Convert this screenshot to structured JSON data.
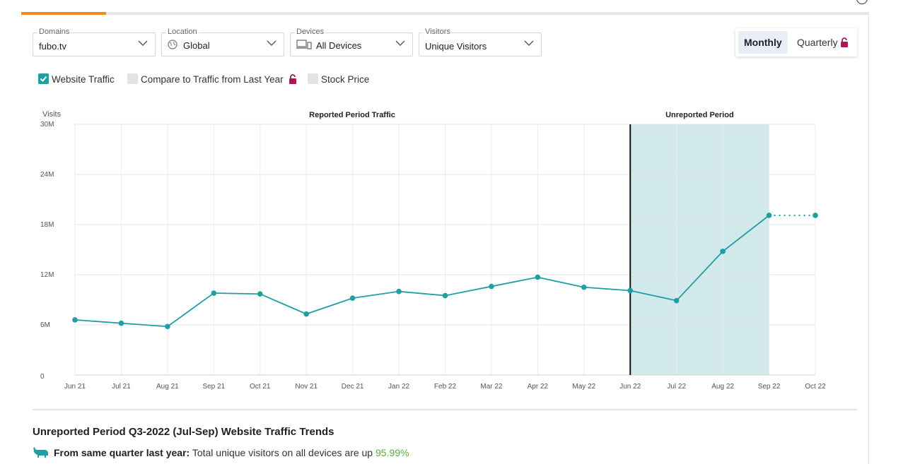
{
  "filters": {
    "domains": {
      "label": "Domains",
      "value": "fubo.tv"
    },
    "location": {
      "label": "Location",
      "value": "Global"
    },
    "devices": {
      "label": "Devices",
      "value": "All Devices"
    },
    "visitors": {
      "label": "Visitors",
      "value": "Unique Visitors"
    }
  },
  "granularity": {
    "monthly": "Monthly",
    "quarterly": "Quarterly",
    "selected": "Monthly"
  },
  "options": {
    "website_traffic": {
      "label": "Website Traffic",
      "checked": true
    },
    "compare_last_year": {
      "label": "Compare to Traffic from Last Year",
      "checked": false
    },
    "stock_price": {
      "label": "Stock Price",
      "checked": false
    }
  },
  "colors": {
    "accent": "#1f9ea6",
    "unreported_band": "#d1e9eb",
    "tab_active": "#f08a1e",
    "lock": "#a8195a",
    "positive": "#5bab3a"
  },
  "chart_data": {
    "type": "line",
    "ylabel": "Visits",
    "ylim": [
      0,
      30000000
    ],
    "yticks": [
      0,
      6000000,
      12000000,
      18000000,
      24000000,
      30000000
    ],
    "ytick_labels": [
      "0",
      "6M",
      "12M",
      "18M",
      "24M",
      "30M"
    ],
    "categories": [
      "Jun 21",
      "Jul 21",
      "Aug 21",
      "Sep 21",
      "Oct 21",
      "Nov 21",
      "Dec 21",
      "Jan 22",
      "Feb 22",
      "Mar 22",
      "Apr 22",
      "May 22",
      "Jun 22",
      "Jul 22",
      "Aug 22",
      "Sep 22",
      "Oct 22"
    ],
    "series": [
      {
        "name": "Website Traffic",
        "values": [
          6600000,
          6200000,
          5800000,
          9800000,
          9700000,
          7300000,
          9200000,
          10000000,
          9500000,
          10600000,
          11700000,
          10500000,
          10100000,
          8900000,
          14800000,
          19100000,
          null
        ]
      },
      {
        "name": "Projection",
        "dashed": true,
        "values": [
          null,
          null,
          null,
          null,
          null,
          null,
          null,
          null,
          null,
          null,
          null,
          null,
          null,
          null,
          null,
          19100000,
          19100000
        ]
      }
    ],
    "regions": [
      {
        "label": "Reported Period Traffic",
        "from_index": 0,
        "to_index": 12
      },
      {
        "label": "Unreported Period",
        "from_index": 12,
        "to_index": 15,
        "shaded": true
      }
    ],
    "grid": true
  },
  "trends": {
    "title": "Unreported Period Q3-2022 (Jul-Sep) Website Traffic Trends",
    "line_label": "From same quarter last year:",
    "line_text": "Total unique visitors on all devices are up",
    "line_value": "95.99%"
  }
}
